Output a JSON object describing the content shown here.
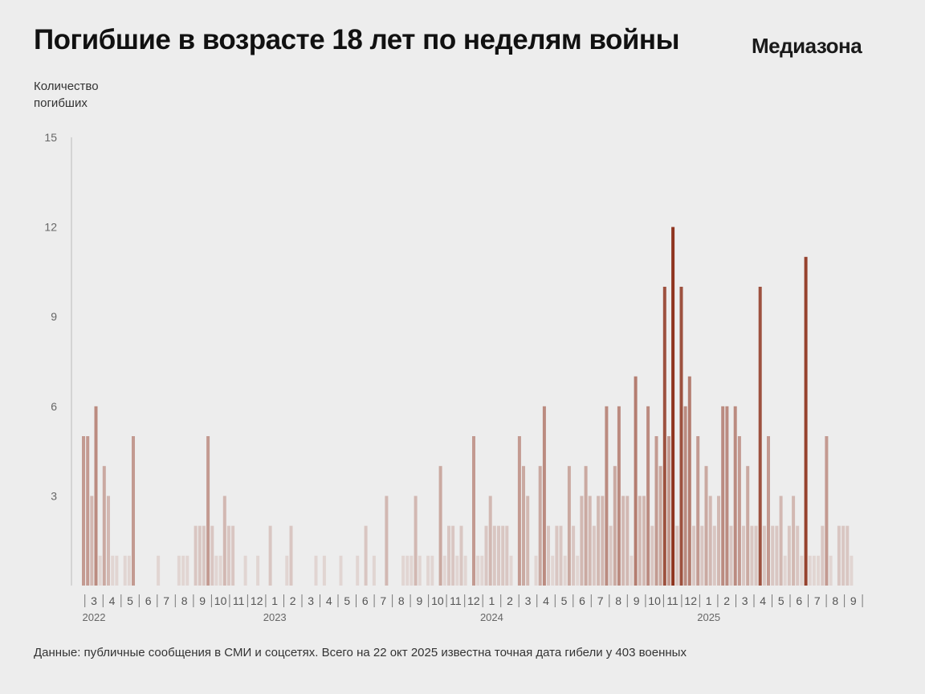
{
  "title": "Погибшие в возрасте 18 лет по неделям войны",
  "logo": "Медиазона",
  "source_note": "Данные: публичные сообщения в СМИ и соцсетях. Всего на 22 окт 2025 известна точная дата гибели у 403 военных",
  "colors": {
    "background": "#ededed",
    "bar_max": "#8f3520",
    "axis": "#bbbbbb"
  },
  "chart_data": {
    "type": "bar",
    "title": "Погибшие в возрасте 18 лет по неделям войны",
    "ylabel_lines": [
      "Количество",
      "погибших"
    ],
    "xlabel": "",
    "ylim": [
      0,
      15
    ],
    "yticks": [
      3,
      6,
      9,
      12,
      15
    ],
    "grid": false,
    "x_unit": "week",
    "values": [
      5,
      5,
      3,
      6,
      1,
      4,
      3,
      1,
      1,
      0,
      1,
      1,
      5,
      0,
      0,
      0,
      0,
      0,
      1,
      0,
      0,
      0,
      0,
      1,
      1,
      1,
      0,
      2,
      2,
      2,
      5,
      2,
      1,
      1,
      3,
      2,
      2,
      0,
      0,
      1,
      0,
      0,
      1,
      0,
      0,
      2,
      0,
      0,
      0,
      1,
      2,
      0,
      0,
      0,
      0,
      0,
      1,
      0,
      1,
      0,
      0,
      0,
      1,
      0,
      0,
      0,
      1,
      0,
      2,
      0,
      1,
      0,
      0,
      3,
      0,
      0,
      0,
      1,
      1,
      1,
      3,
      1,
      0,
      1,
      1,
      0,
      4,
      1,
      2,
      2,
      1,
      2,
      1,
      0,
      5,
      1,
      1,
      2,
      3,
      2,
      2,
      2,
      2,
      1,
      0,
      5,
      4,
      3,
      0,
      1,
      4,
      6,
      2,
      1,
      2,
      2,
      1,
      4,
      2,
      1,
      3,
      4,
      3,
      2,
      3,
      3,
      6,
      2,
      4,
      6,
      3,
      3,
      1,
      7,
      3,
      3,
      6,
      2,
      5,
      4,
      10,
      5,
      12,
      2,
      10,
      6,
      7,
      2,
      5,
      2,
      4,
      3,
      2,
      3,
      6,
      6,
      2,
      6,
      5,
      2,
      4,
      2,
      2,
      10,
      2,
      5,
      2,
      2,
      3,
      1,
      2,
      3,
      2,
      1,
      11,
      1,
      1,
      1,
      2,
      5,
      1,
      0,
      2,
      2,
      2,
      1
    ],
    "month_labels": [
      "3",
      "4",
      "5",
      "6",
      "7",
      "8",
      "9",
      "10",
      "11",
      "12",
      "1",
      "2",
      "3",
      "4",
      "5",
      "6",
      "7",
      "8",
      "9",
      "10",
      "11",
      "12",
      "1",
      "2",
      "3",
      "4",
      "5",
      "6",
      "7",
      "8",
      "9",
      "10",
      "11",
      "12",
      "1",
      "2",
      "3",
      "4",
      "5",
      "6",
      "7",
      "8",
      "9"
    ],
    "year_labels": [
      {
        "text": "2022",
        "month_index": 0
      },
      {
        "text": "2023",
        "month_index": 10
      },
      {
        "text": "2024",
        "month_index": 22
      },
      {
        "text": "2025",
        "month_index": 34
      }
    ],
    "total": 403
  }
}
